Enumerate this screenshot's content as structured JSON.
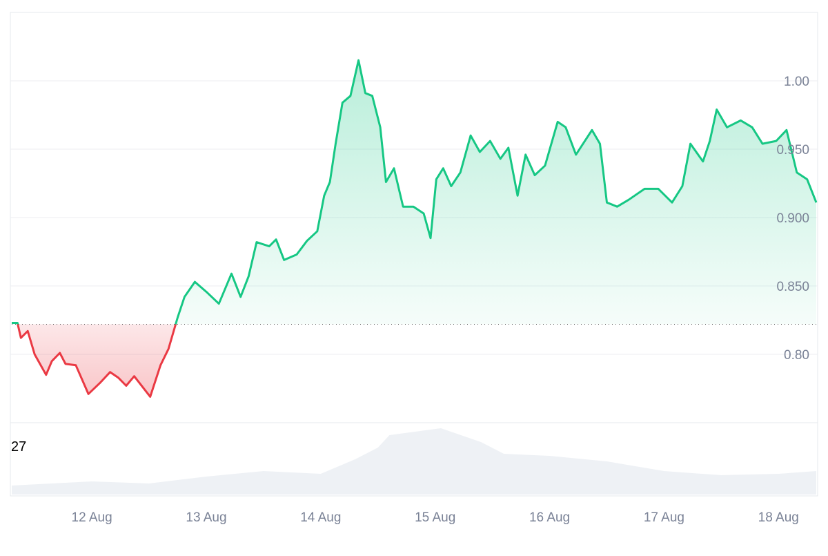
{
  "chart_data": {
    "type": "line",
    "x": [
      11.3,
      11.35,
      11.38,
      11.44,
      11.5,
      11.6,
      11.65,
      11.72,
      11.77,
      11.86,
      11.97,
      12.07,
      12.16,
      12.23,
      12.3,
      12.37,
      12.51,
      12.6,
      12.67,
      12.75,
      12.81,
      12.9,
      13.01,
      13.11,
      13.22,
      13.3,
      13.37,
      13.44,
      13.55,
      13.61,
      13.68,
      13.79,
      13.88,
      13.97,
      14.03,
      14.08,
      14.13,
      14.19,
      14.26,
      14.33,
      14.39,
      14.45,
      14.52,
      14.57,
      14.64,
      14.72,
      14.81,
      14.9,
      14.96,
      15.01,
      15.07,
      15.14,
      15.22,
      15.31,
      15.39,
      15.48,
      15.57,
      15.64,
      15.72,
      15.79,
      15.87,
      15.96,
      16.07,
      16.14,
      16.23,
      16.37,
      16.44,
      16.5,
      16.59,
      16.69,
      16.83,
      16.95,
      17.07,
      17.16,
      17.23,
      17.34,
      17.4,
      17.46,
      17.55,
      17.67,
      17.77,
      17.86,
      17.98,
      18.07,
      18.16,
      18.25,
      18.33
    ],
    "series": [
      {
        "color": "#16c784",
        "negative_color": "#ea3943",
        "values": [
          0.823,
          0.823,
          0.812,
          0.817,
          0.8,
          0.785,
          0.795,
          0.801,
          0.793,
          0.792,
          0.771,
          0.779,
          0.787,
          0.783,
          0.777,
          0.784,
          0.769,
          0.792,
          0.804,
          0.827,
          0.842,
          0.853,
          0.845,
          0.837,
          0.859,
          0.842,
          0.857,
          0.882,
          0.879,
          0.884,
          0.869,
          0.873,
          0.883,
          0.89,
          0.916,
          0.926,
          0.954,
          0.984,
          0.989,
          1.015,
          0.991,
          0.989,
          0.966,
          0.926,
          0.936,
          0.908,
          0.908,
          0.903,
          0.885,
          0.928,
          0.936,
          0.923,
          0.933,
          0.96,
          0.948,
          0.956,
          0.943,
          0.951,
          0.916,
          0.946,
          0.931,
          0.938,
          0.97,
          0.966,
          0.946,
          0.964,
          0.954,
          0.911,
          0.908,
          0.913,
          0.921,
          0.921,
          0.911,
          0.923,
          0.954,
          0.941,
          0.956,
          0.979,
          0.966,
          0.971,
          0.966,
          0.954,
          0.956,
          0.964,
          0.933,
          0.928,
          0.911
        ]
      }
    ],
    "baseline": 0.822,
    "xlim": [
      11.3,
      18.33
    ],
    "xticks": [
      {
        "value": 12,
        "label": "12 Aug"
      },
      {
        "value": 13,
        "label": "13 Aug"
      },
      {
        "value": 14,
        "label": "14 Aug"
      },
      {
        "value": 15,
        "label": "15 Aug"
      },
      {
        "value": 16,
        "label": "16 Aug"
      },
      {
        "value": 17,
        "label": "17 Aug"
      },
      {
        "value": 18,
        "label": "18 Aug"
      }
    ],
    "ylim": [
      0.75,
      1.05
    ],
    "yticks": [
      {
        "value": 0.8,
        "label": "0.80"
      },
      {
        "value": 0.85,
        "label": "0.850"
      },
      {
        "value": 0.9,
        "label": "0.900"
      },
      {
        "value": 0.95,
        "label": "0.950"
      },
      {
        "value": 1.0,
        "label": "1.00"
      }
    ],
    "grid": true,
    "volume": {
      "label": "27",
      "color": "#eef1f5",
      "x": [
        11.3,
        12.0,
        12.5,
        13.0,
        13.5,
        14.0,
        14.3,
        14.5,
        14.6,
        15.05,
        15.4,
        15.6,
        16.0,
        16.5,
        17.0,
        17.5,
        18.0,
        18.33
      ],
      "values": [
        13,
        19,
        16,
        26,
        34,
        30,
        51,
        68,
        86,
        96,
        76,
        59,
        56,
        48,
        34,
        28,
        30,
        34
      ],
      "y2lim": [
        0,
        100
      ]
    }
  }
}
